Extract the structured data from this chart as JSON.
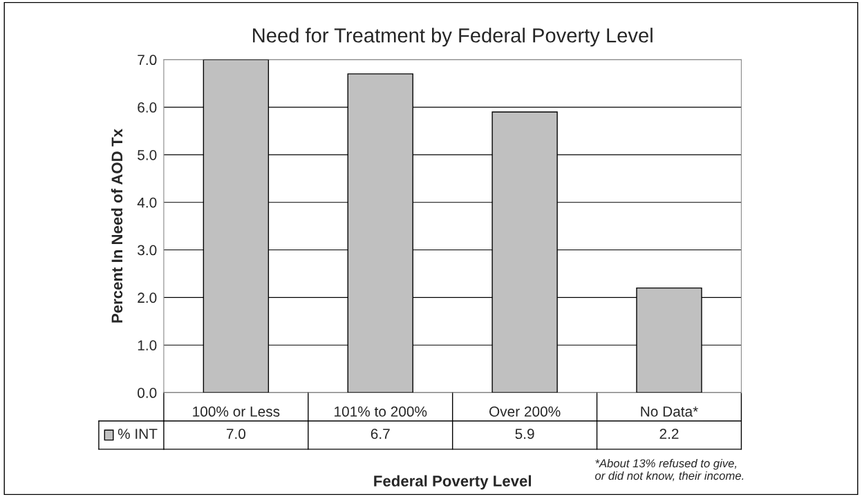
{
  "chart_data": {
    "type": "bar",
    "title": "Need for Treatment by Federal Poverty Level",
    "xlabel": "Federal Poverty Level",
    "ylabel": "Percent In Need of AOD Tx",
    "categories": [
      "100% or Less",
      "101% to 200%",
      "Over 200%",
      "No Data*"
    ],
    "series": [
      {
        "name": "% INT",
        "color": "#c0c0c0",
        "values": [
          7.0,
          6.7,
          5.9,
          2.2
        ],
        "value_labels": [
          "7.0",
          "6.7",
          "5.9",
          "2.2"
        ]
      }
    ],
    "ylim": [
      0,
      7
    ],
    "yticks": [
      {
        "value": 0,
        "label": "0.0"
      },
      {
        "value": 1,
        "label": "1.0"
      },
      {
        "value": 2,
        "label": "2.0"
      },
      {
        "value": 3,
        "label": "3.0"
      },
      {
        "value": 4,
        "label": "4.0"
      },
      {
        "value": 5,
        "label": "5.0"
      },
      {
        "value": 6,
        "label": "6.0"
      },
      {
        "value": 7,
        "label": "7.0"
      }
    ],
    "grid": "y",
    "legend": "bottom",
    "annotations": [
      "*About 13% refused to give,\nor did not know, their income."
    ]
  }
}
